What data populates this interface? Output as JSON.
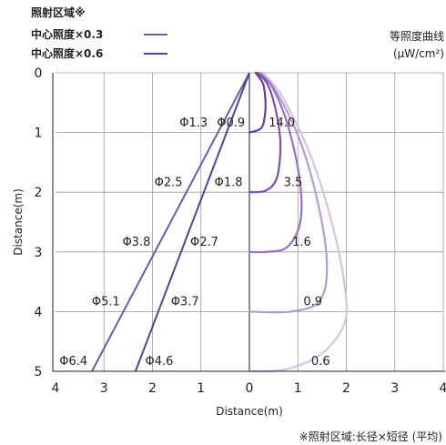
{
  "legend": {
    "title": "照射区域※",
    "items": [
      {
        "label": "中心照度×0.3",
        "color": "#6e5aa8"
      },
      {
        "label": "中心照度×0.6",
        "color": "#5a3f9a"
      }
    ]
  },
  "iso_title": {
    "line1": "等照度曲线",
    "line2": "(μW/cm²)"
  },
  "footnote": "※照射区域:长径×短径 (平均)",
  "chart_data": {
    "type": "line",
    "xlabel": "Distance(m)",
    "ylabel": "Distance(m)",
    "x_ticks": [
      "4",
      "3",
      "2",
      "1",
      "0",
      "1",
      "2",
      "3",
      "4"
    ],
    "y_ticks": [
      "0",
      "1",
      "2",
      "3",
      "4",
      "5"
    ],
    "xlim": [
      -4,
      4
    ],
    "ylim": [
      0,
      5
    ],
    "grid": true,
    "beam_lines": [
      {
        "name": "中心照度×0.3",
        "color": "#6e5aa8",
        "x": [
          0,
          -3.25
        ],
        "y": [
          0,
          5
        ]
      },
      {
        "name": "中心照度×0.6",
        "color": "#5a3f9a",
        "x": [
          0,
          -2.35
        ],
        "y": [
          0,
          5
        ]
      }
    ],
    "area_labels": [
      {
        "text": "Φ1.3",
        "x": -1.15,
        "y": 0.82
      },
      {
        "text": "Φ0.9",
        "x": -0.38,
        "y": 0.82
      },
      {
        "text": "Φ2.5",
        "x": -1.67,
        "y": 1.82
      },
      {
        "text": "Φ1.8",
        "x": -0.43,
        "y": 1.82
      },
      {
        "text": "Φ3.8",
        "x": -2.33,
        "y": 2.82
      },
      {
        "text": "Φ2.7",
        "x": -0.93,
        "y": 2.82
      },
      {
        "text": "Φ5.1",
        "x": -2.96,
        "y": 3.82
      },
      {
        "text": "Φ3.7",
        "x": -1.33,
        "y": 3.82
      },
      {
        "text": "Φ6.4",
        "x": -3.63,
        "y": 4.82
      },
      {
        "text": "Φ4.6",
        "x": -1.86,
        "y": 4.82
      }
    ],
    "iso_curves": [
      {
        "label": "14.0",
        "color": "#6a3aa0",
        "label_x": 0.67,
        "label_y": 0.82,
        "points": [
          [
            0.13,
            0
          ],
          [
            0.28,
            0.18
          ],
          [
            0.33,
            0.45
          ],
          [
            0.32,
            0.72
          ],
          [
            0.24,
            0.93
          ],
          [
            0,
            1
          ]
        ]
      },
      {
        "label": "3.5",
        "color": "#7d4fb0",
        "label_x": 0.9,
        "label_y": 1.82,
        "points": [
          [
            0.16,
            0
          ],
          [
            0.38,
            0.2
          ],
          [
            0.55,
            0.65
          ],
          [
            0.64,
            1.2
          ],
          [
            0.57,
            1.75
          ],
          [
            0.35,
            1.97
          ],
          [
            0,
            2
          ]
        ]
      },
      {
        "label": "1.6",
        "color": "#9a6fc6",
        "label_x": 1.08,
        "label_y": 2.82,
        "points": [
          [
            0.2,
            0
          ],
          [
            0.48,
            0.25
          ],
          [
            0.8,
            0.9
          ],
          [
            1.04,
            1.8
          ],
          [
            1.05,
            2.5
          ],
          [
            0.78,
            2.92
          ],
          [
            0.35,
            3
          ],
          [
            0,
            3
          ]
        ]
      },
      {
        "label": "0.9",
        "color": "#b69bd6",
        "label_x": 1.31,
        "label_y": 3.82,
        "points": [
          [
            0.24,
            0
          ],
          [
            0.58,
            0.35
          ],
          [
            1.05,
            1.15
          ],
          [
            1.42,
            2.2
          ],
          [
            1.6,
            3.2
          ],
          [
            1.45,
            3.82
          ],
          [
            0.85,
            4
          ],
          [
            0,
            4
          ]
        ]
      },
      {
        "label": "0.6",
        "color": "#d2c5e8",
        "label_x": 1.47,
        "label_y": 4.82,
        "points": [
          [
            0.28,
            0
          ],
          [
            0.68,
            0.4
          ],
          [
            1.27,
            1.4
          ],
          [
            1.73,
            2.6
          ],
          [
            1.97,
            3.6
          ],
          [
            1.96,
            4.2
          ],
          [
            1.5,
            4.7
          ],
          [
            0.75,
            4.97
          ],
          [
            0,
            5
          ]
        ]
      }
    ]
  }
}
